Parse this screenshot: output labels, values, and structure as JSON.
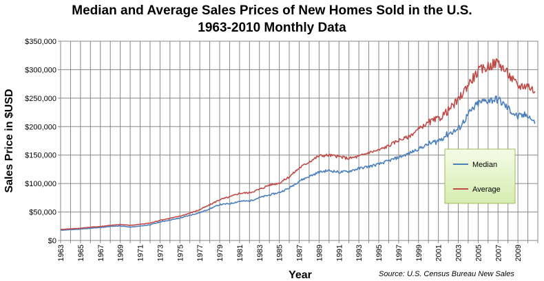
{
  "chart_data": {
    "type": "line",
    "title": "Median and Average Sales Prices of New Homes Sold in the U.S.",
    "subtitle": "1963-2010 Monthly Data",
    "xlabel": "Year",
    "ylabel": "Sales Price in $USD",
    "source_note": "Source:  U.S. Census Bureau New Sales",
    "ylim": [
      0,
      350000
    ],
    "xlim": [
      1963,
      2011
    ],
    "y_ticks": [
      "$0",
      "$50,000",
      "$100,000",
      "$150,000",
      "$200,000",
      "$250,000",
      "$300,000",
      "$350,000"
    ],
    "x_ticks": [
      "1963",
      "1965",
      "1967",
      "1969",
      "1971",
      "1973",
      "1975",
      "1977",
      "1979",
      "1981",
      "1983",
      "1985",
      "1987",
      "1989",
      "1991",
      "1993",
      "1995",
      "1997",
      "1999",
      "2001",
      "2003",
      "2005",
      "2007",
      "2009"
    ],
    "grid": true,
    "legend_position": "right",
    "series": [
      {
        "name": "Median",
        "color": "#4a7ebb",
        "x": [
          1963,
          1964,
          1965,
          1966,
          1967,
          1968,
          1969,
          1970,
          1971,
          1972,
          1973,
          1974,
          1975,
          1976,
          1977,
          1978,
          1979,
          1980,
          1981,
          1982,
          1983,
          1984,
          1985,
          1986,
          1987,
          1988,
          1989,
          1990,
          1991,
          1992,
          1993,
          1994,
          1995,
          1996,
          1997,
          1998,
          1999,
          2000,
          2001,
          2002,
          2003,
          2004,
          2005,
          2006,
          2007,
          2008,
          2009,
          2010,
          2010.7
        ],
        "values": [
          18000,
          18900,
          20000,
          21400,
          22700,
          24700,
          25600,
          23400,
          25200,
          27600,
          32500,
          35900,
          39300,
          44200,
          48800,
          55700,
          62900,
          64600,
          68900,
          69300,
          75300,
          79900,
          84300,
          92000,
          104500,
          112500,
          120000,
          122900,
          120000,
          121500,
          126500,
          130000,
          133900,
          140000,
          146000,
          152500,
          161000,
          169000,
          175200,
          187600,
          195000,
          221000,
          240900,
          246500,
          247900,
          232100,
          216700,
          221200,
          205000
        ]
      },
      {
        "name": "Average",
        "color": "#be4b48",
        "x": [
          1963,
          1964,
          1965,
          1966,
          1967,
          1968,
          1969,
          1970,
          1971,
          1972,
          1973,
          1974,
          1975,
          1976,
          1977,
          1978,
          1979,
          1980,
          1981,
          1982,
          1983,
          1984,
          1985,
          1986,
          1987,
          1988,
          1989,
          1990,
          1991,
          1992,
          1993,
          1994,
          1995,
          1996,
          1997,
          1998,
          1999,
          2000,
          2001,
          2002,
          2003,
          2004,
          2005,
          2006,
          2007,
          2008,
          2009,
          2010,
          2010.7
        ],
        "values": [
          19300,
          20500,
          21500,
          23300,
          24600,
          26600,
          27900,
          26600,
          28300,
          30500,
          35500,
          38900,
          42600,
          48000,
          54200,
          62500,
          71800,
          76400,
          83000,
          83900,
          89800,
          97600,
          100800,
          111900,
          127200,
          138300,
          148800,
          149800,
          147200,
          144100,
          147700,
          154500,
          158700,
          166400,
          176200,
          181900,
          195600,
          207000,
          213200,
          228700,
          246300,
          274500,
          297000,
          305900,
          313600,
          292600,
          270900,
          272900,
          262000
        ]
      }
    ]
  }
}
